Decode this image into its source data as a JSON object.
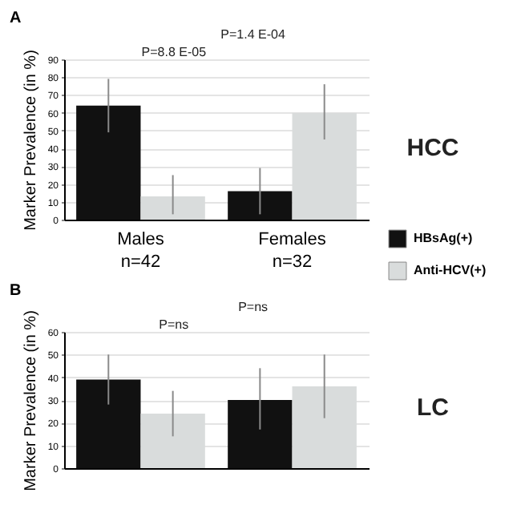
{
  "chart_data": [
    {
      "type": "bar",
      "title": "A",
      "ylabel": "Marker Prevalence (in %)",
      "categories": [
        "Males\nn=42",
        "Females\nn=32"
      ],
      "series": [
        {
          "name": "HBsAg(+)",
          "color": "#111111",
          "values": [
            64,
            16
          ],
          "errors": [
            [
              49,
              79
            ],
            [
              3,
              29
            ]
          ]
        },
        {
          "name": "Anti-HCV(+)",
          "color": "#d9dcdc",
          "values": [
            13,
            60
          ],
          "errors": [
            [
              3,
              25
            ],
            [
              45,
              76
            ]
          ]
        }
      ],
      "ylim": [
        0,
        90
      ],
      "yticks": [
        0,
        10,
        20,
        30,
        40,
        50,
        60,
        70,
        80,
        90
      ],
      "grid": "y",
      "legend": "right",
      "annotations": [
        "P=1.4 E-04",
        "P=8.8 E-05",
        "HCC"
      ]
    },
    {
      "type": "bar",
      "title": "B",
      "ylabel": "Marker Prevalence (in %)",
      "categories": [
        null,
        null
      ],
      "series": [
        {
          "color": "#111111",
          "values": [
            39,
            30
          ],
          "errors": [
            [
              28,
              50
            ],
            [
              17,
              44
            ]
          ]
        },
        {
          "color": "#d9dcdc",
          "values": [
            24,
            36
          ],
          "errors": [
            [
              14,
              34
            ],
            [
              22,
              50
            ]
          ]
        }
      ],
      "ylim": [
        0,
        60
      ],
      "yticks": [
        0,
        10,
        20,
        30,
        40,
        50,
        60
      ],
      "grid": "y",
      "tick_labels": "y",
      "annotations": [
        "P=ns",
        "P=ns",
        "LC"
      ]
    }
  ]
}
